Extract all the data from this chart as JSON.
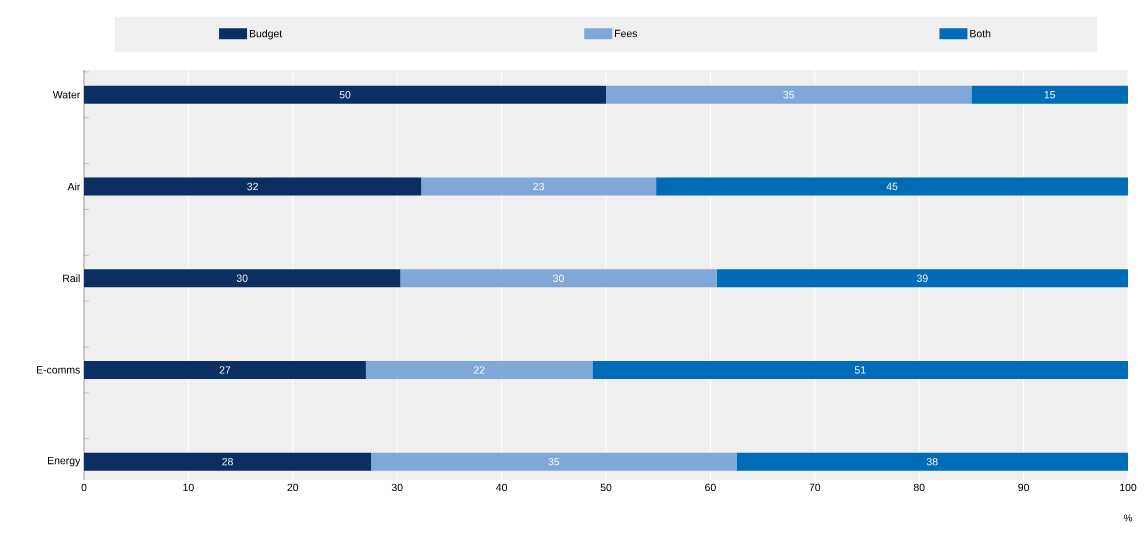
{
  "chart_data": {
    "type": "bar",
    "orientation": "horizontal",
    "stacked": true,
    "categories": [
      "Water",
      "Air",
      "Rail",
      "E-comms",
      "Energy"
    ],
    "series": [
      {
        "name": "Budget",
        "color": "#0b2e63",
        "values": [
          50,
          32.3,
          30.3,
          27.0,
          27.5
        ],
        "value_labels": [
          "50",
          "32",
          "30",
          "27",
          "28"
        ]
      },
      {
        "name": "Fees",
        "color": "#7fa8d8",
        "values": [
          35,
          22.5,
          30.3,
          21.7,
          35.0
        ],
        "value_labels": [
          "35",
          "23",
          "30",
          "22",
          "35"
        ]
      },
      {
        "name": "Both",
        "color": "#006bb6",
        "values": [
          15,
          45.2,
          39.4,
          51.3,
          37.5
        ],
        "value_labels": [
          "15",
          "45",
          "39",
          "51",
          "38"
        ]
      }
    ],
    "xlabel": "%",
    "xlim": [
      0,
      100
    ],
    "xticks": [
      0,
      10,
      20,
      30,
      40,
      50,
      60,
      70,
      80,
      90,
      100
    ],
    "grid": "x",
    "legend": "top"
  }
}
